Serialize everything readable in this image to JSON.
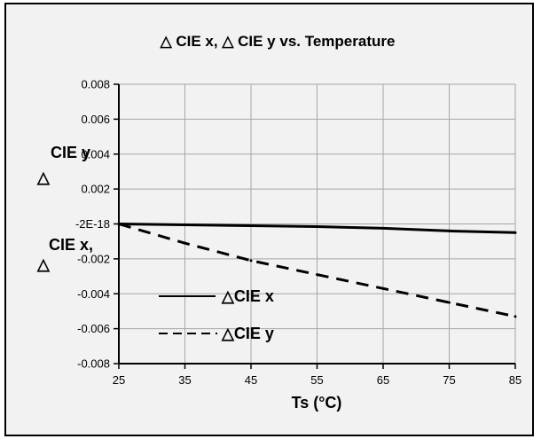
{
  "chart_data": {
    "type": "line",
    "title": "△ CIE x,  △ CIE y vs. Temperature",
    "xlabel": "Ts (°C)",
    "ylabel_lines": [
      "CIE y",
      "△",
      "CIE x,",
      "△"
    ],
    "x": [
      25,
      35,
      45,
      55,
      65,
      75,
      85
    ],
    "xlim": [
      25,
      85
    ],
    "ylim": [
      -0.008,
      0.008
    ],
    "x_ticks": [
      "25",
      "35",
      "45",
      "55",
      "65",
      "75",
      "85"
    ],
    "y_ticks": [
      "-0.008",
      "-0.006",
      "-0.004",
      "-0.002",
      "-2E-18",
      "0.002",
      "0.004",
      "0.006",
      "0.008"
    ],
    "grid": true,
    "legend_position": "bottom-left",
    "series": [
      {
        "name": "△CIE x",
        "style": "solid",
        "color": "#000000",
        "values": [
          0,
          -5e-05,
          -0.0001,
          -0.00015,
          -0.00025,
          -0.0004,
          -0.0005
        ]
      },
      {
        "name": "△CIE y",
        "style": "dashed",
        "color": "#000000",
        "values": [
          0,
          -0.0011,
          -0.0021,
          -0.0029,
          -0.0037,
          -0.0045,
          -0.0053
        ]
      }
    ]
  }
}
